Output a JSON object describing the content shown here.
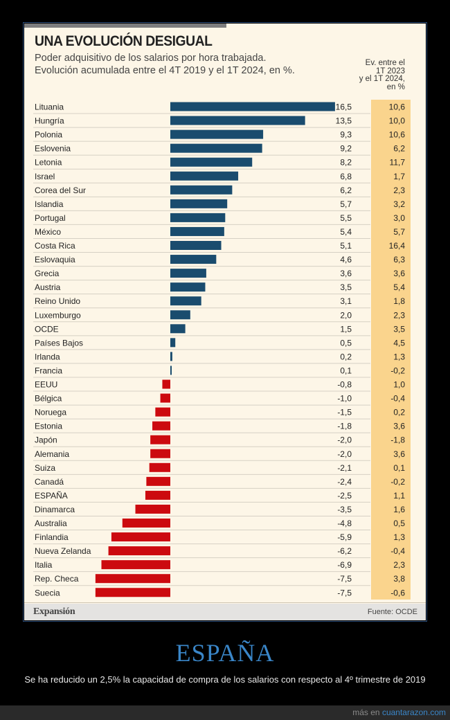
{
  "card": {
    "title": "UNA EVOLUCIÓN DESIGUAL",
    "subtitle_line1": "Poder adquisitivo de los salarios por hora trabajada.",
    "subtitle_line2": "Evolución acumulada entre el 4T 2019 y el 1T 2024, en %.",
    "col_header": [
      "Ev. entre el",
      "1T 2023",
      "y el 1T 2024,",
      "en %"
    ],
    "brand": "Expansión",
    "source": "Fuente: OCDE"
  },
  "colors": {
    "positive": "#1a4c6e",
    "negative": "#cc0a0f",
    "highlight": "#fad48d",
    "accent": "#3a86c8"
  },
  "chart_data": {
    "type": "bar",
    "orientation": "horizontal",
    "categories": [
      "Lituania",
      "Hungría",
      "Polonia",
      "Eslovenia",
      "Letonia",
      "Israel",
      "Corea del Sur",
      "Islandia",
      "Portugal",
      "México",
      "Costa Rica",
      "Eslovaquia",
      "Grecia",
      "Austria",
      "Reino Unido",
      "Luxemburgo",
      "OCDE",
      "Países Bajos",
      "Irlanda",
      "Francia",
      "EEUU",
      "Bélgica",
      "Noruega",
      "Estonia",
      "Japón",
      "Alemania",
      "Suiza",
      "Canadá",
      "ESPAÑA",
      "Dinamarca",
      "Australia",
      "Finlandia",
      "Nueva Zelanda",
      "Italia",
      "Rep. Checa",
      "Suecia"
    ],
    "values": [
      16.5,
      13.5,
      9.3,
      9.2,
      8.2,
      6.8,
      6.2,
      5.7,
      5.5,
      5.4,
      5.1,
      4.6,
      3.6,
      3.5,
      3.1,
      2.0,
      1.5,
      0.5,
      0.2,
      0.1,
      -0.8,
      -1.0,
      -1.5,
      -1.8,
      -2.0,
      -2.0,
      -2.1,
      -2.4,
      -2.5,
      -3.5,
      -4.8,
      -5.9,
      -6.2,
      -6.9,
      -7.5,
      -7.5
    ],
    "value_labels": [
      "16,5",
      "13,5",
      "9,3",
      "9,2",
      "8,2",
      "6,8",
      "6,2",
      "5,7",
      "5,5",
      "5,4",
      "5,1",
      "4,6",
      "3,6",
      "3,5",
      "3,1",
      "2,0",
      "1,5",
      "0,5",
      "0,2",
      "0,1",
      "-0,8",
      "-1,0",
      "-1,5",
      "-1,8",
      "-2,0",
      "-2,0",
      "-2,1",
      "-2,4",
      "-2,5",
      "-3,5",
      "-4,8",
      "-5,9",
      "-6,2",
      "-6,9",
      "-7,5",
      "-7,5"
    ],
    "secondary_values": [
      10.6,
      10.0,
      10.6,
      6.2,
      11.7,
      1.7,
      2.3,
      3.2,
      3.0,
      5.7,
      16.4,
      6.3,
      3.6,
      5.4,
      1.8,
      2.3,
      3.5,
      4.5,
      1.3,
      -0.2,
      1.0,
      -0.4,
      0.2,
      3.6,
      -1.8,
      3.6,
      0.1,
      -0.2,
      1.1,
      1.6,
      0.5,
      1.3,
      -0.4,
      2.3,
      3.8,
      -0.6
    ],
    "secondary_labels": [
      "10,6",
      "10,0",
      "10,6",
      "6,2",
      "11,7",
      "1,7",
      "2,3",
      "3,2",
      "3,0",
      "5,7",
      "16,4",
      "6,3",
      "3,6",
      "5,4",
      "1,8",
      "2,3",
      "3,5",
      "4,5",
      "1,3",
      "-0,2",
      "1,0",
      "-0,4",
      "0,2",
      "3,6",
      "-1,8",
      "3,6",
      "0,1",
      "-0,2",
      "1,1",
      "1,6",
      "0,5",
      "1,3",
      "-0,4",
      "2,3",
      "3,8",
      "-0,6"
    ],
    "xlim": [
      -7.5,
      16.5
    ],
    "title": "UNA EVOLUCIÓN DESIGUAL",
    "xlabel": "",
    "ylabel": "",
    "grid": false,
    "legend": "none"
  },
  "caption": {
    "headline": "ESPAÑA",
    "text": "Se ha reducido un 2,5% la capacidad de compra de los salarios con respecto al 4º trimestre de 2019"
  },
  "site": {
    "prefix": "más en",
    "link": "cuantarazon.com"
  }
}
